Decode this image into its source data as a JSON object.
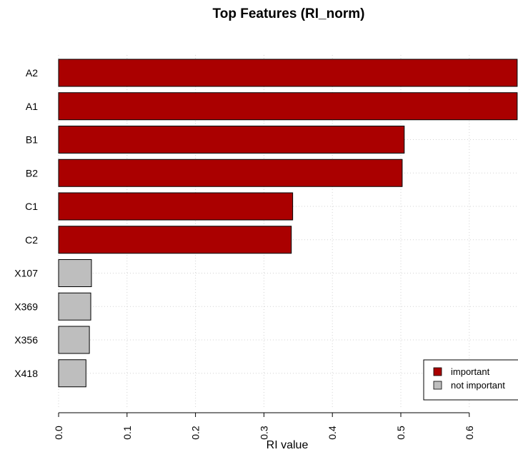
{
  "chart_data": {
    "type": "bar",
    "orientation": "horizontal",
    "title": "Top Features (RI_norm)",
    "xlabel": "RI value",
    "ylabel": "",
    "xlim": [
      0,
      0.67
    ],
    "ticks": [
      "0.0",
      "0.1",
      "0.2",
      "0.3",
      "0.4",
      "0.5",
      "0.6"
    ],
    "tick_values": [
      0,
      0.1,
      0.2,
      0.3,
      0.4,
      0.5,
      0.6
    ],
    "grid": true,
    "categories": [
      "A2",
      "A1",
      "B1",
      "B2",
      "C1",
      "C2",
      "X107",
      "X369",
      "X356",
      "X418"
    ],
    "values": [
      0.67,
      0.67,
      0.505,
      0.502,
      0.342,
      0.34,
      0.048,
      0.047,
      0.045,
      0.04
    ],
    "groups": [
      "important",
      "important",
      "important",
      "important",
      "important",
      "important",
      "not important",
      "not important",
      "not important",
      "not important"
    ],
    "legend": {
      "placement": "bottom-right",
      "entries": [
        {
          "label": "important",
          "color": "#aa0000"
        },
        {
          "label": "not important",
          "color": "#bebebe"
        }
      ]
    }
  }
}
